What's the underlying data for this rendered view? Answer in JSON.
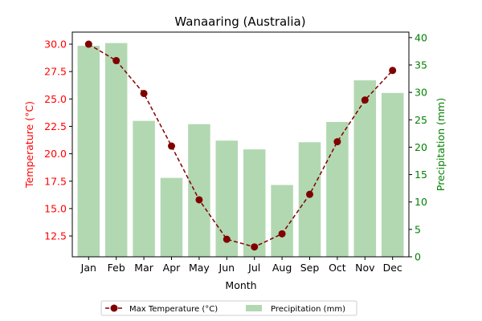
{
  "chart_data": {
    "type": "bar+line",
    "title": "Wanaaring (Australia)",
    "xlabel": "Month",
    "categories": [
      "Jan",
      "Feb",
      "Mar",
      "Apr",
      "May",
      "Jun",
      "Jul",
      "Aug",
      "Sep",
      "Oct",
      "Nov",
      "Dec"
    ],
    "series": [
      {
        "name": "Max Temperature (°C)",
        "type": "line",
        "axis": "left",
        "values": [
          30.0,
          28.5,
          25.5,
          20.7,
          15.8,
          12.2,
          11.5,
          12.7,
          16.3,
          21.1,
          24.9,
          27.6
        ],
        "color": "#800000"
      },
      {
        "name": "Precipitation (mm)",
        "type": "bar",
        "axis": "right",
        "values": [
          38.5,
          39.0,
          24.8,
          14.4,
          24.2,
          21.2,
          19.6,
          13.1,
          20.9,
          24.6,
          32.2,
          29.9
        ],
        "color": "#b2d8b2"
      }
    ],
    "y_left": {
      "label": "Temperature (°C)",
      "range": [
        10.6,
        31.1
      ],
      "ticks": [
        "12.5",
        "15.0",
        "17.5",
        "20.0",
        "22.5",
        "25.0",
        "27.5",
        "30.0"
      ],
      "color": "#ff0000"
    },
    "y_right": {
      "label": "Precipitation (mm)",
      "range": [
        0,
        41.0
      ],
      "ticks": [
        "0",
        "5",
        "10",
        "15",
        "20",
        "25",
        "30",
        "35",
        "40"
      ],
      "color": "#008000"
    },
    "legend_position": "bottom-center",
    "grid": false
  }
}
